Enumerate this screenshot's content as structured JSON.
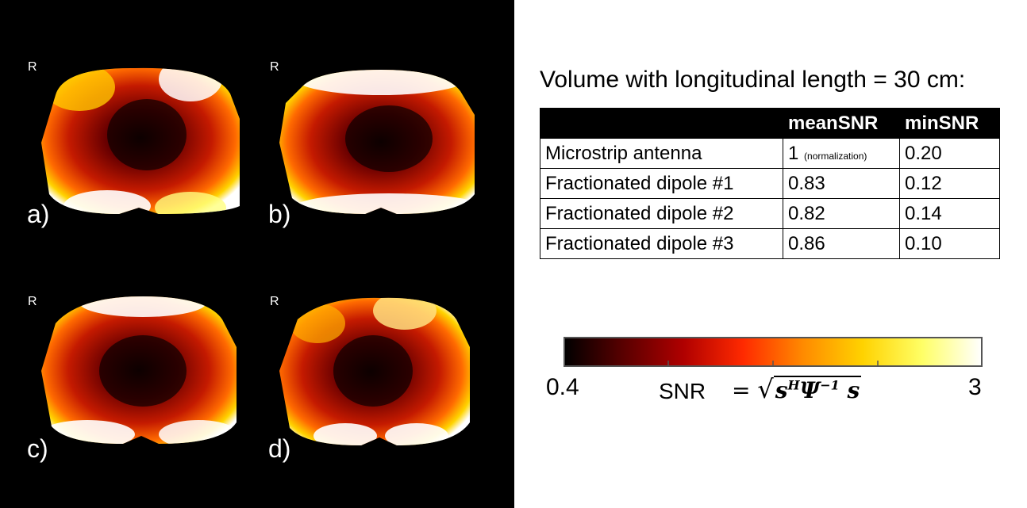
{
  "panels": [
    {
      "id": "a",
      "letter": "a)",
      "orientation": "R"
    },
    {
      "id": "b",
      "letter": "b)",
      "orientation": "R"
    },
    {
      "id": "c",
      "letter": "c)",
      "orientation": "R"
    },
    {
      "id": "d",
      "letter": "d)",
      "orientation": "R"
    }
  ],
  "table": {
    "title": "Volume with longitudinal length = 30 cm:",
    "headers": [
      "",
      "meanSNR",
      "minSNR"
    ],
    "rows": [
      {
        "name": "Microstrip antenna",
        "mean": "1",
        "mean_note": "(normalization)",
        "min": "0.20"
      },
      {
        "name": "Fractionated dipole #1",
        "mean": "0.83",
        "mean_note": "",
        "min": "0.12"
      },
      {
        "name": "Fractionated dipole #2",
        "mean": "0.82",
        "mean_note": "",
        "min": "0.14"
      },
      {
        "name": "Fractionated dipole #3",
        "mean": "0.86",
        "mean_note": "",
        "min": "0.10"
      }
    ]
  },
  "colorbar": {
    "min": "0.4",
    "max": "3",
    "label": "SNR",
    "formula": {
      "equals": "=",
      "radical": "√",
      "s": "s",
      "H": "H",
      "psi": "Ψ",
      "inv": "−1",
      "s2": "s"
    },
    "colors": [
      "#000000",
      "#5a0000",
      "#b00000",
      "#ff2a00",
      "#ff8a00",
      "#ffd200",
      "#ffff66",
      "#ffffff"
    ]
  },
  "colors": {
    "background_left": "#000000",
    "background_right": "#ffffff"
  }
}
